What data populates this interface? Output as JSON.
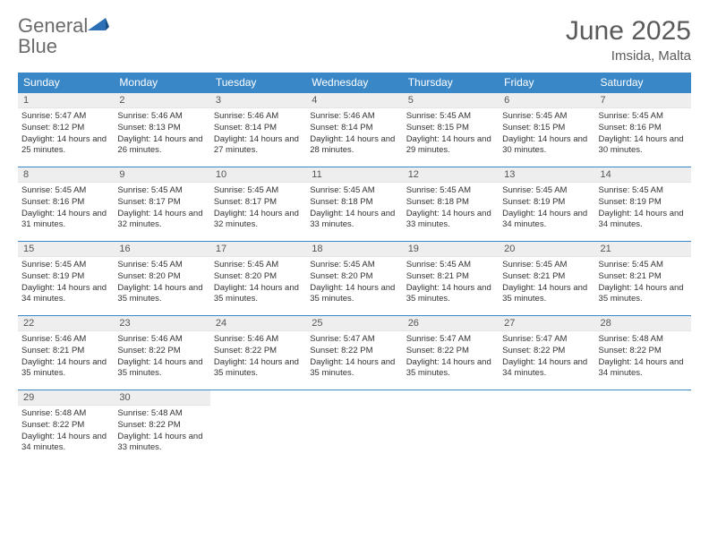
{
  "logo": {
    "main": "General",
    "accent": "Blue"
  },
  "title": "June 2025",
  "location": "Imsida, Malta",
  "colors": {
    "header_bg": "#3a87c8",
    "header_text": "#ffffff",
    "daynum_bg": "#eeeeee",
    "border": "#3a87c8",
    "logo_gray": "#6b6b6b",
    "logo_blue": "#2c6fb5"
  },
  "day_headers": [
    "Sunday",
    "Monday",
    "Tuesday",
    "Wednesday",
    "Thursday",
    "Friday",
    "Saturday"
  ],
  "days": [
    {
      "n": 1,
      "sr": "5:47 AM",
      "ss": "8:12 PM",
      "dl": "14 hours and 25 minutes."
    },
    {
      "n": 2,
      "sr": "5:46 AM",
      "ss": "8:13 PM",
      "dl": "14 hours and 26 minutes."
    },
    {
      "n": 3,
      "sr": "5:46 AM",
      "ss": "8:14 PM",
      "dl": "14 hours and 27 minutes."
    },
    {
      "n": 4,
      "sr": "5:46 AM",
      "ss": "8:14 PM",
      "dl": "14 hours and 28 minutes."
    },
    {
      "n": 5,
      "sr": "5:45 AM",
      "ss": "8:15 PM",
      "dl": "14 hours and 29 minutes."
    },
    {
      "n": 6,
      "sr": "5:45 AM",
      "ss": "8:15 PM",
      "dl": "14 hours and 30 minutes."
    },
    {
      "n": 7,
      "sr": "5:45 AM",
      "ss": "8:16 PM",
      "dl": "14 hours and 30 minutes."
    },
    {
      "n": 8,
      "sr": "5:45 AM",
      "ss": "8:16 PM",
      "dl": "14 hours and 31 minutes."
    },
    {
      "n": 9,
      "sr": "5:45 AM",
      "ss": "8:17 PM",
      "dl": "14 hours and 32 minutes."
    },
    {
      "n": 10,
      "sr": "5:45 AM",
      "ss": "8:17 PM",
      "dl": "14 hours and 32 minutes."
    },
    {
      "n": 11,
      "sr": "5:45 AM",
      "ss": "8:18 PM",
      "dl": "14 hours and 33 minutes."
    },
    {
      "n": 12,
      "sr": "5:45 AM",
      "ss": "8:18 PM",
      "dl": "14 hours and 33 minutes."
    },
    {
      "n": 13,
      "sr": "5:45 AM",
      "ss": "8:19 PM",
      "dl": "14 hours and 34 minutes."
    },
    {
      "n": 14,
      "sr": "5:45 AM",
      "ss": "8:19 PM",
      "dl": "14 hours and 34 minutes."
    },
    {
      "n": 15,
      "sr": "5:45 AM",
      "ss": "8:19 PM",
      "dl": "14 hours and 34 minutes."
    },
    {
      "n": 16,
      "sr": "5:45 AM",
      "ss": "8:20 PM",
      "dl": "14 hours and 35 minutes."
    },
    {
      "n": 17,
      "sr": "5:45 AM",
      "ss": "8:20 PM",
      "dl": "14 hours and 35 minutes."
    },
    {
      "n": 18,
      "sr": "5:45 AM",
      "ss": "8:20 PM",
      "dl": "14 hours and 35 minutes."
    },
    {
      "n": 19,
      "sr": "5:45 AM",
      "ss": "8:21 PM",
      "dl": "14 hours and 35 minutes."
    },
    {
      "n": 20,
      "sr": "5:45 AM",
      "ss": "8:21 PM",
      "dl": "14 hours and 35 minutes."
    },
    {
      "n": 21,
      "sr": "5:45 AM",
      "ss": "8:21 PM",
      "dl": "14 hours and 35 minutes."
    },
    {
      "n": 22,
      "sr": "5:46 AM",
      "ss": "8:21 PM",
      "dl": "14 hours and 35 minutes."
    },
    {
      "n": 23,
      "sr": "5:46 AM",
      "ss": "8:22 PM",
      "dl": "14 hours and 35 minutes."
    },
    {
      "n": 24,
      "sr": "5:46 AM",
      "ss": "8:22 PM",
      "dl": "14 hours and 35 minutes."
    },
    {
      "n": 25,
      "sr": "5:47 AM",
      "ss": "8:22 PM",
      "dl": "14 hours and 35 minutes."
    },
    {
      "n": 26,
      "sr": "5:47 AM",
      "ss": "8:22 PM",
      "dl": "14 hours and 35 minutes."
    },
    {
      "n": 27,
      "sr": "5:47 AM",
      "ss": "8:22 PM",
      "dl": "14 hours and 34 minutes."
    },
    {
      "n": 28,
      "sr": "5:48 AM",
      "ss": "8:22 PM",
      "dl": "14 hours and 34 minutes."
    },
    {
      "n": 29,
      "sr": "5:48 AM",
      "ss": "8:22 PM",
      "dl": "14 hours and 34 minutes."
    },
    {
      "n": 30,
      "sr": "5:48 AM",
      "ss": "8:22 PM",
      "dl": "14 hours and 33 minutes."
    }
  ],
  "labels": {
    "sunrise": "Sunrise:",
    "sunset": "Sunset:",
    "daylight": "Daylight:"
  },
  "layout": {
    "first_weekday_offset": 0,
    "total_cells": 35
  }
}
